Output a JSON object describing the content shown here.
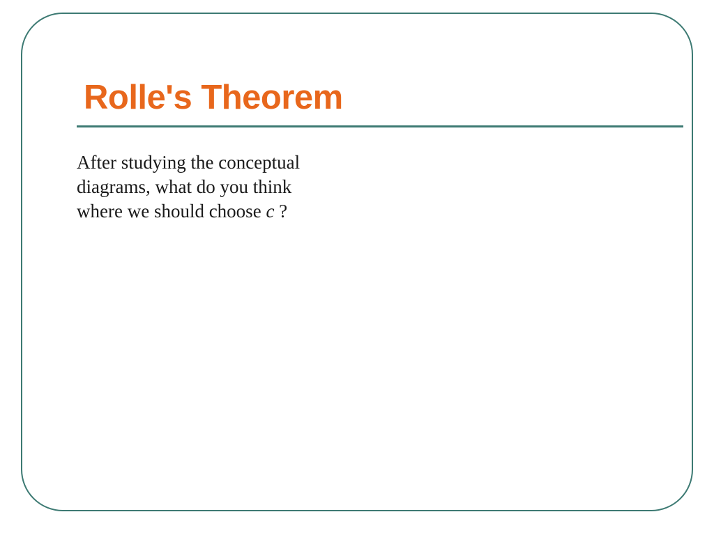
{
  "slide": {
    "title": "Rolle's Theorem",
    "body_line1": "After studying the conceptual",
    "body_line2": "diagrams, what do you think",
    "body_line3_pre": "where we should choose ",
    "body_var": "c",
    "body_line3_post": " ?",
    "frame_border_color": "#3d7a73",
    "title_color": "#e8671c",
    "underline_color": "#3d7a73",
    "body_color": "#1a1a1a",
    "title_fontsize": 49,
    "body_fontsize": 27,
    "frame_border_radius": 60
  }
}
